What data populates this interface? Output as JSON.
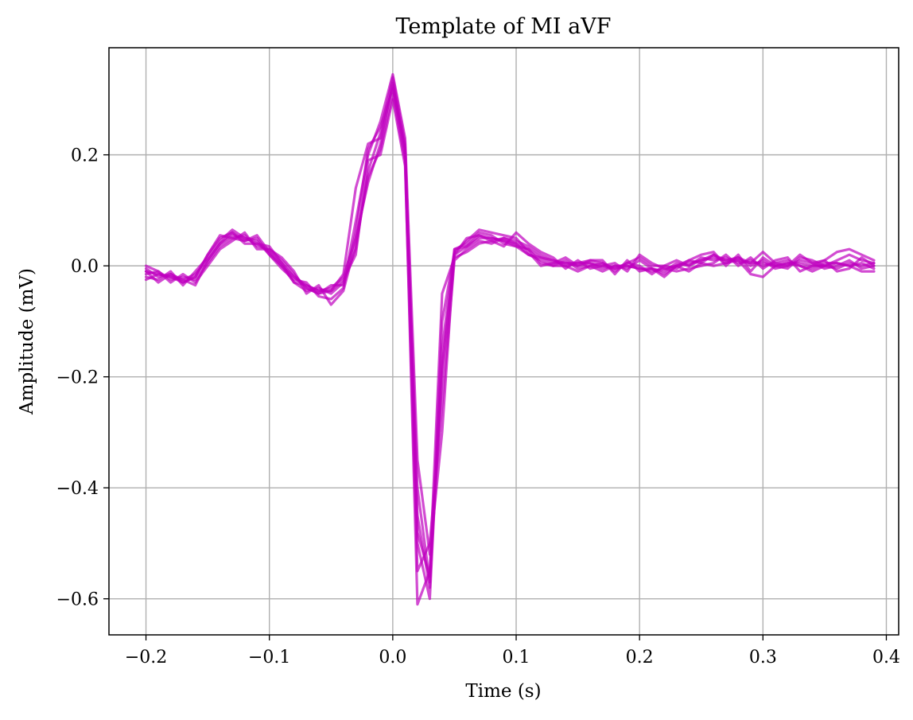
{
  "chart_data": {
    "type": "line",
    "title": "Template of MI aVF",
    "xlabel": "Time (s)",
    "ylabel": "Amplitude (mV)",
    "xlim": [
      -0.23,
      0.41
    ],
    "ylim": [
      -0.665,
      0.393
    ],
    "xticks": [
      -0.2,
      -0.1,
      0.0,
      0.1,
      0.2,
      0.3,
      0.4
    ],
    "xtick_labels": [
      "−0.2",
      "−0.1",
      "0.0",
      "0.1",
      "0.2",
      "0.3",
      "0.4"
    ],
    "yticks": [
      0.2,
      0.0,
      -0.2,
      -0.4,
      -0.6
    ],
    "ytick_labels": [
      "0.2",
      "0.0",
      "−0.2",
      "−0.4",
      "−0.6"
    ],
    "grid": true,
    "legend": "none",
    "color": "#bf00bf",
    "x": [
      -0.2,
      -0.19,
      -0.18,
      -0.17,
      -0.16,
      -0.15,
      -0.14,
      -0.13,
      -0.12,
      -0.11,
      -0.1,
      -0.09,
      -0.08,
      -0.07,
      -0.06,
      -0.05,
      -0.04,
      -0.03,
      -0.02,
      -0.01,
      0.0,
      0.01,
      0.02,
      0.03,
      0.04,
      0.05,
      0.06,
      0.07,
      0.08,
      0.09,
      0.1,
      0.11,
      0.12,
      0.13,
      0.14,
      0.15,
      0.16,
      0.17,
      0.18,
      0.19,
      0.2,
      0.21,
      0.22,
      0.23,
      0.24,
      0.25,
      0.26,
      0.27,
      0.28,
      0.29,
      0.3,
      0.31,
      0.32,
      0.33,
      0.34,
      0.35,
      0.36,
      0.37,
      0.38,
      0.39
    ],
    "series": [
      {
        "values": [
          -0.01,
          -0.015,
          -0.02,
          -0.025,
          -0.015,
          0.01,
          0.04,
          0.055,
          0.05,
          0.04,
          0.025,
          0.005,
          -0.02,
          -0.035,
          -0.045,
          -0.04,
          -0.02,
          0.05,
          0.15,
          0.22,
          0.33,
          0.2,
          -0.4,
          -0.57,
          -0.2,
          0.02,
          0.035,
          0.05,
          0.05,
          0.045,
          0.04,
          0.03,
          0.015,
          0.005,
          0.005,
          0.0,
          0.005,
          0.0,
          -0.005,
          0.0,
          -0.005,
          -0.01,
          -0.005,
          0.0,
          0.005,
          0.01,
          0.015,
          0.01,
          0.01,
          0.005,
          0.005,
          0.0,
          0.005,
          0.005,
          0.0,
          0.0,
          -0.005,
          0.005,
          0.0,
          0.005
        ]
      },
      {
        "values": [
          -0.005,
          -0.02,
          -0.015,
          -0.03,
          -0.02,
          0.02,
          0.05,
          0.06,
          0.045,
          0.05,
          0.02,
          0.0,
          -0.03,
          -0.045,
          -0.04,
          -0.05,
          -0.03,
          0.03,
          0.17,
          0.24,
          0.34,
          0.22,
          -0.5,
          -0.6,
          -0.15,
          0.03,
          0.04,
          0.06,
          0.055,
          0.04,
          0.035,
          0.02,
          0.01,
          0.0,
          0.01,
          -0.005,
          0.0,
          0.005,
          -0.01,
          0.005,
          0.0,
          -0.015,
          0.0,
          -0.005,
          0.01,
          0.005,
          0.02,
          0.005,
          0.015,
          0.0,
          0.01,
          -0.005,
          0.0,
          0.01,
          0.005,
          -0.005,
          0.0,
          0.01,
          -0.005,
          0.0
        ]
      },
      {
        "values": [
          -0.015,
          -0.01,
          -0.025,
          -0.02,
          -0.025,
          0.005,
          0.035,
          0.05,
          0.055,
          0.035,
          0.03,
          0.01,
          -0.015,
          -0.04,
          -0.05,
          -0.045,
          -0.025,
          0.02,
          0.19,
          0.2,
          0.3,
          0.18,
          -0.55,
          -0.5,
          -0.25,
          0.01,
          0.03,
          0.045,
          0.04,
          0.05,
          0.045,
          0.035,
          0.02,
          0.01,
          0.0,
          0.005,
          0.005,
          -0.005,
          0.0,
          -0.005,
          0.01,
          -0.005,
          -0.01,
          0.005,
          0.0,
          0.015,
          0.01,
          0.015,
          0.005,
          0.01,
          0.0,
          0.005,
          0.01,
          0.0,
          -0.005,
          0.005,
          0.005,
          0.0,
          0.005,
          -0.005
        ]
      },
      {
        "values": [
          -0.02,
          -0.025,
          -0.01,
          -0.035,
          -0.01,
          0.015,
          0.045,
          0.065,
          0.05,
          0.045,
          0.02,
          -0.005,
          -0.025,
          -0.03,
          -0.055,
          -0.06,
          -0.04,
          0.06,
          0.21,
          0.25,
          0.32,
          0.21,
          -0.45,
          -0.58,
          -0.1,
          0.025,
          0.045,
          0.065,
          0.06,
          0.055,
          0.05,
          0.025,
          0.0,
          0.005,
          0.015,
          0.0,
          0.01,
          0.01,
          -0.015,
          0.01,
          -0.01,
          -0.005,
          -0.015,
          0.0,
          0.01,
          0.02,
          0.025,
          0.0,
          0.02,
          -0.01,
          0.015,
          0.0,
          -0.005,
          0.015,
          0.01,
          0.0,
          0.01,
          0.02,
          0.01,
          0.005
        ]
      },
      {
        "values": [
          0.0,
          -0.01,
          -0.03,
          -0.015,
          -0.03,
          0.0,
          0.03,
          0.045,
          0.06,
          0.03,
          0.03,
          0.015,
          -0.01,
          -0.05,
          -0.035,
          -0.07,
          -0.045,
          0.04,
          0.16,
          0.21,
          0.31,
          0.19,
          -0.61,
          -0.55,
          -0.05,
          0.015,
          0.025,
          0.04,
          0.045,
          0.035,
          0.06,
          0.04,
          0.025,
          0.015,
          -0.005,
          0.01,
          -0.005,
          0.0,
          0.005,
          -0.01,
          0.02,
          0.005,
          -0.005,
          -0.01,
          -0.005,
          0.0,
          0.005,
          0.02,
          0.0,
          0.015,
          -0.005,
          0.01,
          0.015,
          -0.01,
          0.0,
          0.01,
          -0.01,
          -0.005,
          0.015,
          0.0
        ]
      },
      {
        "values": [
          -0.025,
          -0.015,
          -0.02,
          -0.03,
          -0.02,
          0.02,
          0.055,
          0.05,
          0.045,
          0.055,
          0.025,
          0.0,
          -0.02,
          -0.04,
          -0.05,
          -0.035,
          -0.035,
          0.08,
          0.2,
          0.26,
          0.345,
          0.23,
          -0.35,
          -0.52,
          -0.3,
          0.03,
          0.035,
          0.055,
          0.05,
          0.045,
          0.035,
          0.03,
          0.005,
          0.0,
          0.0,
          -0.01,
          0.0,
          -0.01,
          0.0,
          0.0,
          -0.005,
          -0.005,
          -0.02,
          0.0,
          -0.01,
          0.005,
          0.0,
          0.005,
          0.01,
          -0.015,
          -0.02,
          0.0,
          0.005,
          0.0,
          -0.01,
          0.0,
          0.005,
          0.0,
          -0.01,
          -0.01
        ]
      },
      {
        "values": [
          -0.01,
          -0.03,
          -0.015,
          -0.025,
          -0.035,
          0.01,
          0.04,
          0.06,
          0.04,
          0.04,
          0.035,
          0.005,
          -0.03,
          -0.035,
          -0.045,
          -0.045,
          -0.015,
          0.14,
          0.22,
          0.23,
          0.325,
          0.21,
          -0.48,
          -0.56,
          -0.18,
          0.02,
          0.05,
          0.055,
          0.045,
          0.05,
          0.04,
          0.02,
          0.015,
          0.01,
          0.005,
          0.005,
          0.01,
          0.005,
          -0.005,
          0.005,
          0.015,
          0.0,
          0.0,
          0.01,
          0.0,
          0.01,
          0.02,
          0.01,
          0.015,
          0.005,
          0.025,
          0.005,
          0.0,
          0.02,
          0.005,
          0.01,
          0.025,
          0.03,
          0.02,
          0.01
        ]
      }
    ]
  }
}
